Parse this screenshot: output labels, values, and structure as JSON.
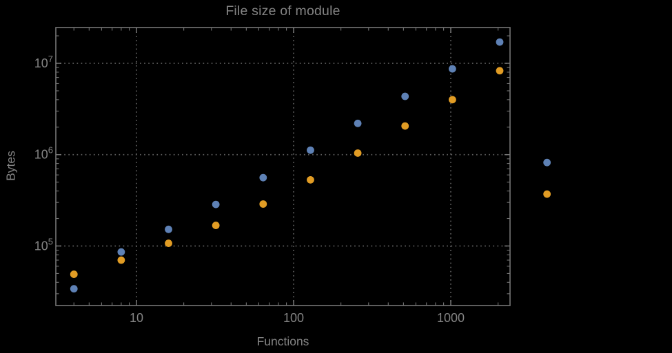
{
  "title": "File size of module",
  "palette": {
    "background": "#000000",
    "frame": "#757575",
    "grid": "#5e5e5e",
    "text": "#848484"
  },
  "chart_data": {
    "type": "scatter",
    "title": "File size of module",
    "xlabel": "Functions",
    "ylabel": "Bytes",
    "grid_style": "dotted",
    "legend": "none",
    "clipping": false,
    "x_axis": {
      "label": "Functions",
      "scale": "log10",
      "range_log10": [
        0.487,
        3.377
      ],
      "ticks": [
        10,
        100,
        1000
      ],
      "tick_labels": [
        "10",
        "100",
        "1000"
      ],
      "gridlines": [
        10,
        100,
        1000
      ]
    },
    "y_axis": {
      "label": "Bytes",
      "scale": "log10",
      "range_log10": [
        4.348,
        7.392
      ],
      "ticks": [
        100000,
        1000000,
        10000000
      ],
      "tick_label_base": "10",
      "tick_exponents": [
        "5",
        "6",
        "7"
      ],
      "gridlines": [
        100000,
        1000000,
        10000000
      ]
    },
    "x": [
      4,
      8,
      16,
      32,
      64,
      128,
      256,
      512,
      1024,
      2048,
      4096
    ],
    "series": [
      {
        "name": "blue",
        "color": "#5e81b5",
        "values": [
          34000,
          86000,
          152000,
          285000,
          560000,
          1120000,
          2200000,
          4350000,
          8700000,
          17100000,
          820000
        ]
      },
      {
        "name": "orange",
        "color": "#e19c24",
        "values": [
          49000,
          70000,
          107000,
          168000,
          288000,
          530000,
          1040000,
          2060000,
          4000000,
          8300000,
          370000
        ]
      }
    ]
  }
}
